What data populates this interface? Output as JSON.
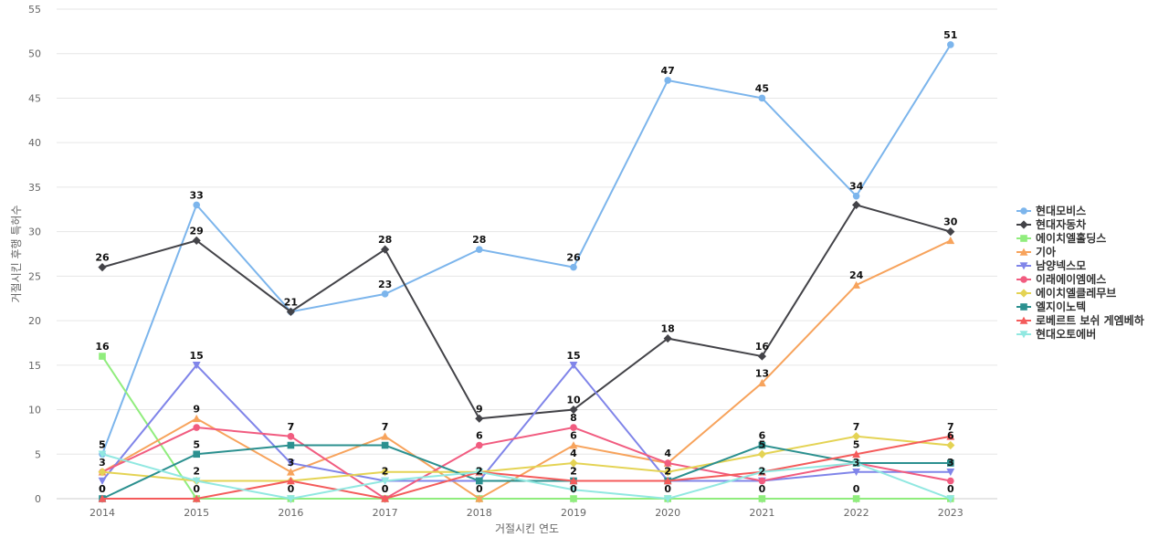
{
  "chart_data": {
    "type": "line",
    "xlabel": "거절시킨 연도",
    "ylabel": "거절시킨 후행 특허수",
    "ylim": [
      0,
      55
    ],
    "yticks": [
      0,
      5,
      10,
      15,
      20,
      25,
      30,
      35,
      40,
      45,
      50,
      55
    ],
    "grid": true,
    "legend_position": "right",
    "categories": [
      "2014",
      "2015",
      "2016",
      "2017",
      "2018",
      "2019",
      "2020",
      "2021",
      "2022",
      "2023"
    ],
    "series": [
      {
        "name": "현대모비스",
        "color": "#7cb5ec",
        "marker": "circle",
        "values": [
          5,
          33,
          21,
          23,
          28,
          26,
          47,
          45,
          34,
          51
        ],
        "labeled": [
          true,
          true,
          true,
          true,
          true,
          true,
          true,
          true,
          true,
          true
        ]
      },
      {
        "name": "현대자동차",
        "color": "#434348",
        "marker": "diamond",
        "values": [
          26,
          29,
          21,
          28,
          9,
          10,
          18,
          16,
          33,
          30
        ],
        "labeled": [
          true,
          true,
          false,
          true,
          true,
          true,
          true,
          true,
          false,
          true
        ]
      },
      {
        "name": "에이치엘홀딩스",
        "color": "#90ed7d",
        "marker": "square",
        "values": [
          16,
          0,
          0,
          0,
          0,
          0,
          0,
          0,
          0,
          0
        ],
        "labeled": [
          true,
          false,
          false,
          false,
          false,
          false,
          false,
          false,
          false,
          false
        ]
      },
      {
        "name": "기아",
        "color": "#f7a35c",
        "marker": "triangle",
        "values": [
          3,
          9,
          3,
          7,
          0,
          6,
          4,
          13,
          24,
          29
        ],
        "labeled": [
          false,
          true,
          false,
          true,
          true,
          true,
          true,
          true,
          true,
          false
        ]
      },
      {
        "name": "남양넥스모",
        "color": "#8085e9",
        "marker": "triangle-down",
        "values": [
          2,
          15,
          4,
          2,
          2,
          15,
          2,
          2,
          3,
          3
        ],
        "labeled": [
          false,
          true,
          false,
          false,
          false,
          true,
          false,
          false,
          false,
          false
        ]
      },
      {
        "name": "이래에이엠에스",
        "color": "#f15c80",
        "marker": "circle",
        "values": [
          3,
          8,
          7,
          0,
          6,
          8,
          4,
          2,
          4,
          2
        ],
        "labeled": [
          false,
          false,
          true,
          false,
          true,
          true,
          false,
          false,
          false,
          false
        ]
      },
      {
        "name": "에이치엘클레무브",
        "color": "#e4d354",
        "marker": "diamond",
        "values": [
          3,
          2,
          2,
          3,
          3,
          4,
          3,
          5,
          7,
          6
        ],
        "labeled": [
          false,
          false,
          false,
          false,
          false,
          true,
          false,
          false,
          true,
          false
        ]
      },
      {
        "name": "엘지이노텍",
        "color": "#2b908f",
        "marker": "square",
        "values": [
          0,
          5,
          6,
          6,
          2,
          2,
          2,
          6,
          4,
          4
        ],
        "labeled": [
          true,
          true,
          false,
          false,
          true,
          false,
          false,
          true,
          false,
          false
        ]
      },
      {
        "name": "로베르트 보쉬 게엠베하",
        "color": "#f45b5b",
        "marker": "triangle",
        "values": [
          0,
          0,
          2,
          0,
          3,
          2,
          2,
          3,
          5,
          7
        ],
        "labeled": [
          false,
          false,
          false,
          true,
          false,
          true,
          true,
          false,
          true,
          true
        ]
      },
      {
        "name": "현대오토에버",
        "color": "#91e8e1",
        "marker": "triangle-down",
        "values": [
          5,
          2,
          0,
          2,
          3,
          1,
          0,
          3,
          4,
          0
        ],
        "labeled": [
          true,
          false,
          false,
          false,
          false,
          false,
          false,
          false,
          false,
          false
        ]
      }
    ],
    "extra_labels": [
      {
        "x": "2015",
        "text": "0",
        "y": 0
      },
      {
        "x": "2015",
        "text": "2",
        "y": 2
      },
      {
        "x": "2016",
        "text": "0",
        "y": 0
      },
      {
        "x": "2016",
        "text": "3",
        "y": 3
      },
      {
        "x": "2017",
        "text": "2",
        "y": 2
      },
      {
        "x": "2017",
        "text": "0",
        "y": 0
      },
      {
        "x": "2018",
        "text": "2",
        "y": 2
      },
      {
        "x": "2019",
        "text": "0",
        "y": 0
      },
      {
        "x": "2019",
        "text": "2",
        "y": 2
      },
      {
        "x": "2020",
        "text": "2",
        "y": 2
      },
      {
        "x": "2020",
        "text": "0",
        "y": 0
      },
      {
        "x": "2021",
        "text": "0",
        "y": 0
      },
      {
        "x": "2021",
        "text": "2",
        "y": 2
      },
      {
        "x": "2021",
        "text": "5",
        "y": 5
      },
      {
        "x": "2022",
        "text": "0",
        "y": 0
      },
      {
        "x": "2022",
        "text": "3",
        "y": 3
      },
      {
        "x": "2023",
        "text": "3",
        "y": 3
      },
      {
        "x": "2023",
        "text": "0",
        "y": 0
      },
      {
        "x": "2023",
        "text": "6",
        "y": 6
      },
      {
        "x": "2014",
        "text": "5",
        "y": 5
      },
      {
        "x": "2014",
        "text": "3",
        "y": 3
      },
      {
        "x": "2014",
        "text": "0",
        "y": 0
      },
      {
        "x": "2017",
        "text": "7",
        "y": 7
      },
      {
        "x": "2016",
        "text": "7",
        "y": 7
      }
    ]
  }
}
